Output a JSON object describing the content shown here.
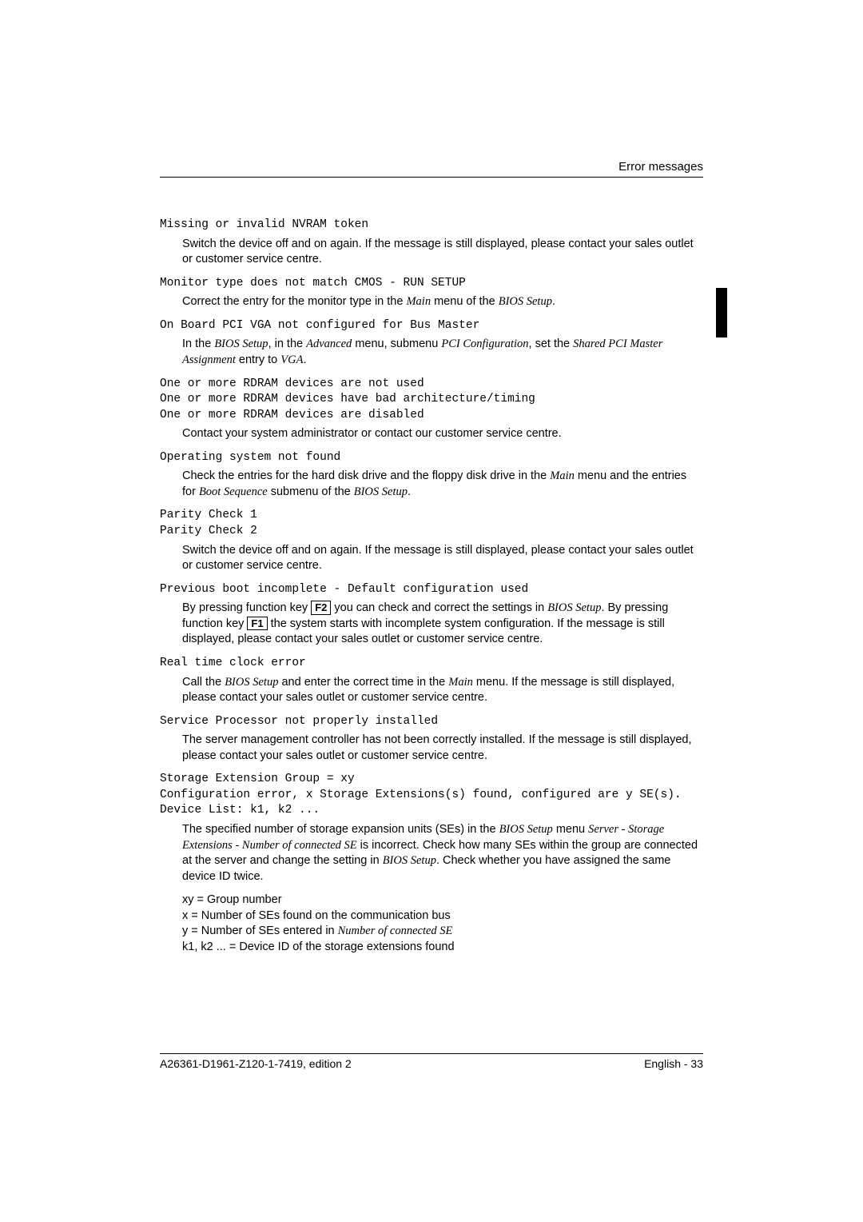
{
  "header": {
    "title": "Error messages"
  },
  "entries": {
    "e1": {
      "code": "Missing or invalid NVRAM token",
      "desc": "Switch the device off and on again. If the message is still displayed, please contact your sales outlet or customer service centre."
    },
    "e2": {
      "code": "Monitor type does not match CMOS - RUN SETUP",
      "desc_pre": "Correct the entry for the monitor type in the ",
      "main": "Main",
      "mid": " menu of the ",
      "bios": "BIOS Setup",
      "suffix": "."
    },
    "e3": {
      "code": "On Board PCI VGA not configured for Bus Master",
      "d1": "In the ",
      "bios": "BIOS Setup",
      "d2": ", in the ",
      "adv": "Advanced",
      "d3": " menu, submenu ",
      "pci": "PCI Configuration",
      "d4": ", set the ",
      "shared": "Shared PCI Master Assignment",
      "d5": " entry to ",
      "vga": "VGA",
      "d6": "."
    },
    "e4": {
      "code": "One or more RDRAM devices are not used\nOne or more RDRAM devices have bad architecture/timing\nOne or more RDRAM devices are disabled",
      "desc": "Contact your system administrator or contact our customer service centre."
    },
    "e5": {
      "code": "Operating system not found",
      "d1": "Check the entries for the hard disk drive and the floppy disk drive in the ",
      "main": "Main",
      "d2": " menu and the entries for ",
      "boot": "Boot Sequence",
      "d3": " submenu of the ",
      "bios": "BIOS Setup",
      "d4": "."
    },
    "e6": {
      "code": "Parity Check 1\nParity Check 2",
      "desc": "Switch the device off and on again. If the message is still displayed, please contact your sales outlet or customer service centre."
    },
    "e7": {
      "code": "Previous boot incomplete - Default configuration used",
      "d1": "By pressing function key ",
      "f2": "F2",
      "d2": " you can check and correct the settings in ",
      "bios": "BIOS Setup",
      "d3": ". By pressing function key ",
      "f1": "F1",
      "d4": " the system starts with incomplete system configuration. If the message is still displayed, please contact your sales outlet or customer service centre."
    },
    "e8": {
      "code": "Real time clock error",
      "d1": "Call the ",
      "bios": "BIOS Setup",
      "d2": " and enter the correct time in the ",
      "main": "Main",
      "d3": " menu. If the message is still displayed, please contact your sales outlet or customer service centre."
    },
    "e9": {
      "code": "Service Processor not properly installed",
      "desc": "The server management controller has not been correctly installed. If the message is still displayed, please contact your sales outlet or customer service centre."
    },
    "e10": {
      "code": "Storage Extension Group = xy\nConfiguration error, x Storage Extensions(s) found, configured are y SE(s).\nDevice List: k1, k2 ...",
      "d1a": "The specified number of storage expansion units (SEs) in the ",
      "bios": "BIOS Setup",
      "d1b": " menu ",
      "srv": "Server - Storage Extensions - Number of connected SE",
      "d1c": " is incorrect. Check how many SEs within the group are connected at the server and change the setting in ",
      "bios2": "BIOS Setup",
      "d1d": ". Check whether you have assigned the same device ID twice.",
      "l1": "xy = Group number",
      "l2": "x = Number of SEs found on the communication bus",
      "l3a": "y = Number of SEs entered in ",
      "l3i": "Number of connected SE",
      "l4": "k1, k2 ... = Device ID of the storage extensions found"
    }
  },
  "footer": {
    "left": "A26361-D1961-Z120-1-7419, edition 2",
    "right": "English - 33"
  }
}
